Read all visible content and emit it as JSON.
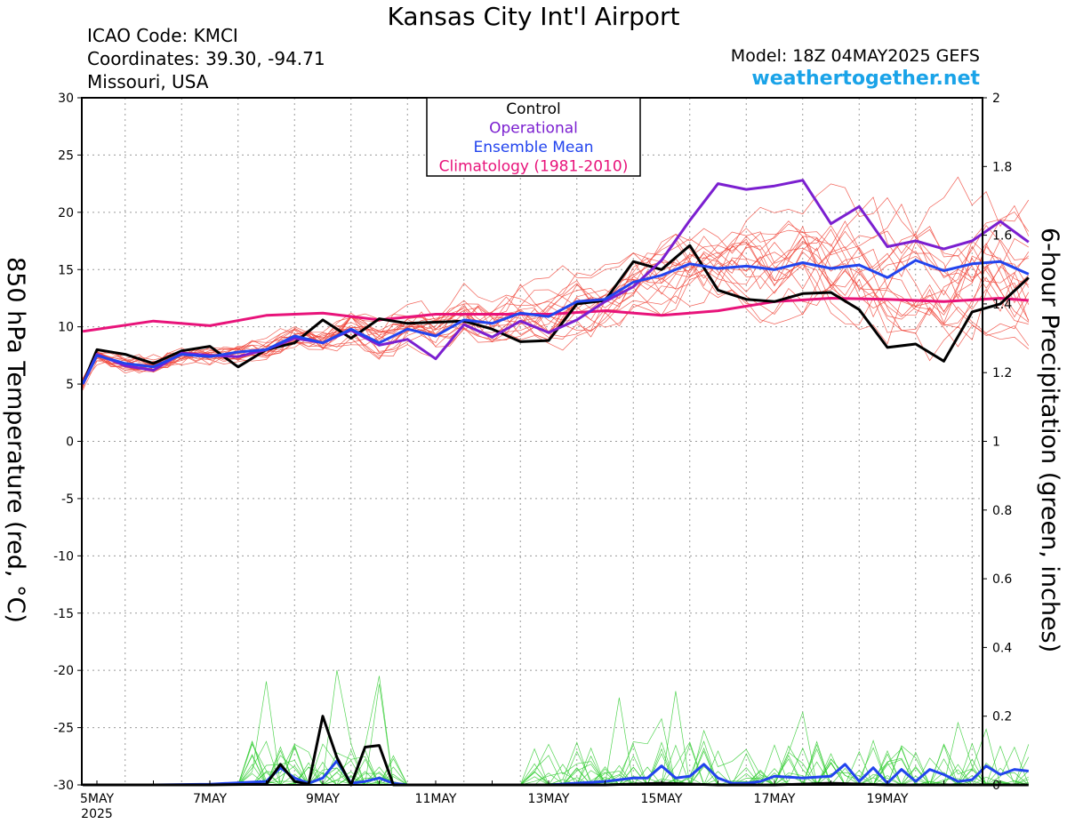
{
  "header": {
    "title": "Kansas City Int'l Airport",
    "icao": "ICAO Code: KMCI",
    "coordinates": "Coordinates: 39.30, -94.71",
    "location": "Missouri, USA",
    "model": "Model: 18Z 04MAY2025 GEFS",
    "site": "weathertogether.net"
  },
  "colors": {
    "members": "#f0453a",
    "operational": "#7b1fd0",
    "control": "#000000",
    "ensemble_mean": "#2244ee",
    "climatology": "#e8137a",
    "precip_members": "#33cc33",
    "site": "#1aa3e8"
  },
  "chart_data": {
    "type": "line",
    "title": "Kansas City Int'l Airport",
    "ylabel": "850 hPa Temperature (red, °C)",
    "y2label": "6-hour Precipitation (green, inches)",
    "xlabel": "",
    "ylim": [
      -30,
      30
    ],
    "y2lim": [
      0,
      2
    ],
    "xlim": [
      0,
      16.5
    ],
    "x_unit": "days after 5MAY2025 00Z",
    "grid": true,
    "yticks": [
      "30",
      "25",
      "20",
      "15",
      "10",
      "5",
      "0",
      "-5",
      "-10",
      "-15",
      "-20",
      "-25",
      "-30"
    ],
    "y2ticks": [
      "2",
      "1.8",
      "1.6",
      "1.4",
      "1.2",
      "1",
      "0.8",
      "0.6",
      "0.4",
      "0.2",
      "0"
    ],
    "xticks": [
      {
        "pos": 0,
        "label": "5MAY",
        "sub": "2025"
      },
      {
        "pos": 2,
        "label": "7MAY",
        "sub": ""
      },
      {
        "pos": 4,
        "label": "9MAY",
        "sub": ""
      },
      {
        "pos": 6,
        "label": "11MAY",
        "sub": ""
      },
      {
        "pos": 8,
        "label": "13MAY",
        "sub": ""
      },
      {
        "pos": 10,
        "label": "15MAY",
        "sub": ""
      },
      {
        "pos": 12,
        "label": "17MAY",
        "sub": ""
      },
      {
        "pos": 14,
        "label": "19MAY",
        "sub": ""
      }
    ],
    "legend": {
      "position": "top-center",
      "entries": [
        {
          "label": "Control",
          "color": "#000000"
        },
        {
          "label": "Operational",
          "color": "#7b1fd0"
        },
        {
          "label": "Ensemble Mean",
          "color": "#2244ee"
        },
        {
          "label": "Climatology (1981-2010)",
          "color": "#e8137a"
        }
      ]
    },
    "series": [
      {
        "name": "Climatology (1981-2010)",
        "axis": "temp",
        "x": [
          -0.25,
          1,
          2,
          3,
          4,
          5,
          6,
          7,
          8,
          9,
          10,
          11,
          12,
          13,
          14,
          15,
          16,
          16.5
        ],
        "y": [
          9.6,
          10.5,
          10.1,
          11.0,
          11.2,
          10.6,
          11.1,
          11.1,
          11.1,
          11.4,
          11.0,
          11.4,
          12.2,
          12.5,
          12.4,
          12.2,
          12.5,
          12.3
        ]
      },
      {
        "name": "Ensemble Mean",
        "axis": "temp",
        "x": [
          -0.25,
          0,
          0.5,
          1,
          1.5,
          2,
          2.5,
          3,
          3.5,
          4,
          4.5,
          5,
          5.5,
          6,
          6.5,
          7,
          7.5,
          8,
          8.5,
          9,
          9.5,
          10,
          10.5,
          11,
          11.5,
          12,
          12.5,
          13,
          13.5,
          14,
          14.5,
          15,
          15.5,
          16,
          16.5
        ],
        "y": [
          5.0,
          7.5,
          6.8,
          6.5,
          7.6,
          7.4,
          7.8,
          8.0,
          9.2,
          8.6,
          9.8,
          8.6,
          9.8,
          9.2,
          10.6,
          10.3,
          11.2,
          10.9,
          12.2,
          12.4,
          13.9,
          14.5,
          15.5,
          15.1,
          15.3,
          15.0,
          15.6,
          15.1,
          15.4,
          14.3,
          15.8,
          14.9,
          15.5,
          15.7,
          14.6
        ]
      },
      {
        "name": "Operational",
        "axis": "temp",
        "x": [
          -0.25,
          0,
          0.5,
          1,
          1.5,
          2,
          2.5,
          3,
          3.5,
          4,
          4.5,
          5,
          5.5,
          6,
          6.5,
          7,
          7.5,
          8,
          8.5,
          9,
          9.5,
          10,
          10.5,
          11,
          11.5,
          12,
          12.5,
          13,
          13.5,
          14,
          14.5,
          15,
          15.5,
          16,
          16.5
        ],
        "y": [
          5.0,
          7.6,
          6.6,
          6.2,
          7.7,
          7.5,
          7.4,
          8.0,
          9.0,
          8.6,
          9.7,
          8.4,
          8.9,
          7.2,
          10.2,
          9.1,
          10.5,
          9.5,
          10.6,
          12.2,
          13.5,
          15.8,
          19.3,
          22.5,
          22.0,
          22.3,
          22.8,
          19.0,
          20.5,
          17.0,
          17.5,
          16.8,
          17.5,
          19.2,
          17.4
        ]
      },
      {
        "name": "Control",
        "axis": "temp",
        "x": [
          -0.25,
          0,
          0.5,
          1,
          1.5,
          2,
          2.5,
          3,
          3.5,
          4,
          4.5,
          5,
          5.5,
          6,
          6.5,
          7,
          7.5,
          8,
          8.5,
          9,
          9.5,
          10,
          10.5,
          11,
          11.5,
          12,
          12.5,
          13,
          13.5,
          14,
          14.5,
          15,
          15.5,
          16,
          16.5
        ],
        "y": [
          5.0,
          8.0,
          7.6,
          6.8,
          7.9,
          8.3,
          6.5,
          8.0,
          8.6,
          10.6,
          9.0,
          10.7,
          10.3,
          10.4,
          10.5,
          9.8,
          8.7,
          8.8,
          12.0,
          12.3,
          15.7,
          15.0,
          17.1,
          13.2,
          12.4,
          12.2,
          12.9,
          13.0,
          11.5,
          8.2,
          8.5,
          7.0,
          11.3,
          12.0,
          14.3
        ]
      },
      {
        "name": "Ensemble Mean",
        "axis": "precip",
        "x": [
          -0.25,
          0,
          1,
          2,
          3,
          3.25,
          3.5,
          3.75,
          4,
          4.25,
          4.5,
          4.75,
          5,
          5.25,
          5.5,
          6,
          7,
          8,
          9,
          9.5,
          9.75,
          10,
          10.25,
          10.5,
          10.75,
          11,
          11.25,
          11.5,
          11.75,
          12,
          12.5,
          13,
          13.25,
          13.5,
          13.75,
          14,
          14.25,
          14.5,
          14.75,
          15,
          15.25,
          15.5,
          15.75,
          16,
          16.25,
          16.5
        ],
        "y": [
          0,
          0,
          0,
          0.002,
          0.01,
          0.05,
          0.02,
          0.005,
          0.02,
          0.07,
          0.005,
          0.01,
          0.02,
          0.005,
          0,
          0,
          0,
          0,
          0.01,
          0.02,
          0.02,
          0.055,
          0.02,
          0.025,
          0.06,
          0.02,
          0.005,
          0.005,
          0.01,
          0.025,
          0.02,
          0.025,
          0.06,
          0.01,
          0.05,
          0.005,
          0.045,
          0.01,
          0.045,
          0.03,
          0.01,
          0.015,
          0.055,
          0.03,
          0.045,
          0.04
        ]
      },
      {
        "name": "Control",
        "axis": "precip",
        "x": [
          -0.25,
          0,
          1,
          2,
          3,
          3.25,
          3.5,
          3.75,
          4,
          4.25,
          4.5,
          4.75,
          5,
          5.25,
          5.5,
          6,
          7,
          8,
          9,
          10,
          11,
          12,
          13,
          14,
          15,
          16,
          16.5
        ],
        "y": [
          0,
          0,
          0,
          0,
          0.002,
          0.06,
          0.01,
          0.002,
          0.2,
          0.08,
          0,
          0.11,
          0.115,
          0,
          0,
          0,
          0,
          0,
          0,
          0.005,
          0,
          0,
          0.005,
          0,
          0,
          0,
          0
        ]
      }
    ]
  }
}
